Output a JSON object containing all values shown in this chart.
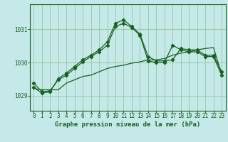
{
  "title": "Graphe pression niveau de la mer (hPa)",
  "bg_color": "#c5e8e8",
  "grid_color": "#90c090",
  "line_color": "#1a6020",
  "xlim": [
    -0.5,
    23.5
  ],
  "ylim": [
    1028.55,
    1031.75
  ],
  "yticks": [
    1029,
    1030,
    1031
  ],
  "xticks": [
    0,
    1,
    2,
    3,
    4,
    5,
    6,
    7,
    8,
    9,
    10,
    11,
    12,
    13,
    14,
    15,
    16,
    17,
    18,
    19,
    20,
    21,
    22,
    23
  ],
  "series1_x": [
    0,
    1,
    2,
    3,
    4,
    5,
    6,
    7,
    8,
    9,
    10,
    11,
    12,
    13,
    14,
    15,
    16,
    17,
    18,
    19,
    20,
    21,
    22,
    23
  ],
  "series1_y": [
    1029.25,
    1029.08,
    1029.12,
    1029.52,
    1029.68,
    1029.88,
    1030.08,
    1030.22,
    1030.38,
    1030.62,
    1031.18,
    1031.28,
    1031.08,
    1030.85,
    1030.18,
    1030.05,
    1030.05,
    1030.08,
    1030.42,
    1030.38,
    1030.38,
    1030.22,
    1030.22,
    1029.72
  ],
  "series2_x": [
    0,
    1,
    2,
    3,
    4,
    5,
    6,
    7,
    8,
    9,
    10,
    11,
    12,
    13,
    14,
    15,
    16,
    17,
    18,
    19,
    20,
    21,
    22,
    23
  ],
  "series2_y": [
    1029.38,
    1029.12,
    1029.15,
    1029.48,
    1029.62,
    1029.82,
    1030.02,
    1030.18,
    1030.32,
    1030.52,
    1031.08,
    1031.18,
    1031.05,
    1030.82,
    1030.05,
    1030.0,
    1030.0,
    1030.52,
    1030.38,
    1030.32,
    1030.32,
    1030.18,
    1030.18,
    1029.62
  ],
  "series3_x": [
    0,
    1,
    2,
    3,
    4,
    5,
    6,
    7,
    8,
    9,
    10,
    11,
    12,
    13,
    14,
    15,
    16,
    17,
    18,
    19,
    20,
    21,
    22,
    23
  ],
  "series3_y": [
    1029.22,
    1029.18,
    1029.18,
    1029.18,
    1029.38,
    1029.48,
    1029.58,
    1029.62,
    1029.72,
    1029.82,
    1029.88,
    1029.92,
    1029.98,
    1030.02,
    1030.08,
    1030.08,
    1030.12,
    1030.22,
    1030.28,
    1030.32,
    1030.38,
    1030.42,
    1030.45,
    1029.65
  ],
  "marker": "D",
  "markersize": 2.2,
  "linewidth": 0.9,
  "tick_fontsize": 5.5,
  "title_fontsize": 6.5
}
